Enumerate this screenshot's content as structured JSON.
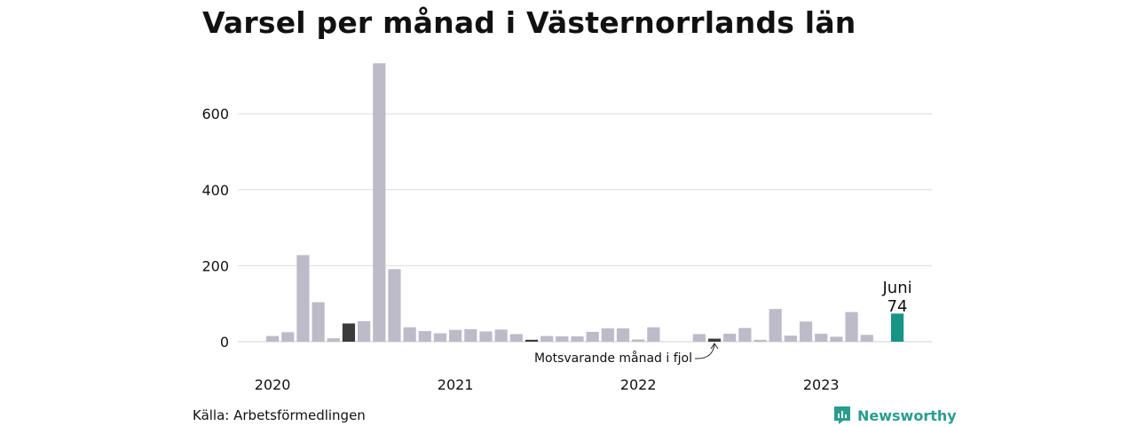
{
  "title": "Varsel per månad i Västernorrlands län",
  "source": "Källa: Arbetsförmedlingen",
  "brand": "Newsworthy",
  "colors": {
    "bar": "#bdbbc8",
    "same_month": "#3b3b3b",
    "current": "#179483",
    "grid": "#dcdcdc",
    "brand": "#2a9d8f"
  },
  "chart_data": {
    "type": "bar",
    "title": "Varsel per månad i Västernorrlands län",
    "xlabel": "",
    "ylabel": "",
    "ylim": [
      0,
      740
    ],
    "yticks": [
      0,
      200,
      400,
      600
    ],
    "grid": true,
    "x_tick_labels": [
      "2020",
      "2021",
      "2022",
      "2023"
    ],
    "categories": [
      "2020-01",
      "2020-02",
      "2020-03",
      "2020-04",
      "2020-05",
      "2020-06",
      "2020-07",
      "2020-08",
      "2020-09",
      "2020-10",
      "2020-11",
      "2020-12",
      "2021-01",
      "2021-02",
      "2021-03",
      "2021-04",
      "2021-05",
      "2021-06",
      "2021-07",
      "2021-08",
      "2021-09",
      "2021-10",
      "2021-11",
      "2021-12",
      "2022-01",
      "2022-02",
      "2022-03",
      "2022-04",
      "2022-05",
      "2022-06",
      "2022-07",
      "2022-08",
      "2022-09",
      "2022-10",
      "2022-11",
      "2022-12",
      "2023-01",
      "2023-02",
      "2023-03",
      "2023-04",
      "2023-05",
      "2023-06"
    ],
    "values": [
      15,
      25,
      228,
      104,
      9,
      48,
      54,
      733,
      191,
      38,
      28,
      22,
      31,
      33,
      27,
      32,
      20,
      5,
      15,
      14,
      14,
      26,
      35,
      35,
      6,
      38,
      0,
      0,
      20,
      8,
      21,
      36,
      5,
      86,
      16,
      53,
      21,
      13,
      78,
      18,
      0,
      74
    ],
    "highlight_same_month": [
      "2020-06",
      "2021-06",
      "2022-06"
    ],
    "current": "2023-06",
    "annotations": {
      "current_label": "Juni",
      "current_value": "74",
      "previous_year_label": "Motsvarande månad i fjol"
    }
  }
}
